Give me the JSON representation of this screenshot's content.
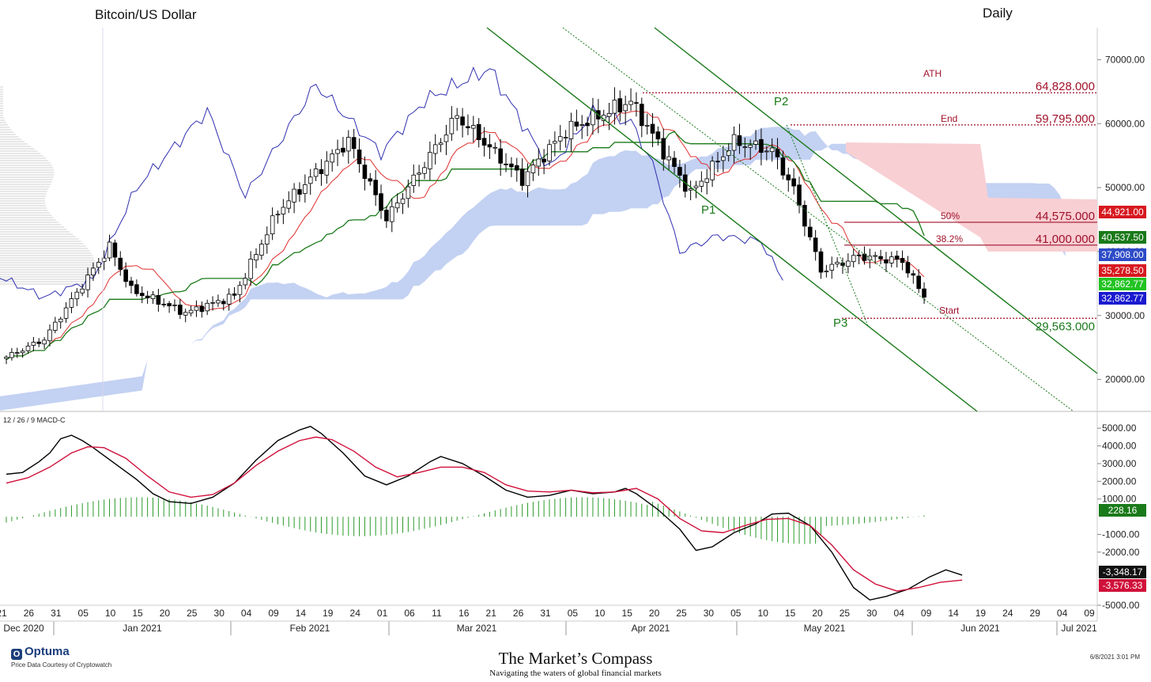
{
  "chart_title": "Bitcoin/US Dollar",
  "timeframe": "Daily",
  "indicator_label": "12 / 26 / 9 MACD-C",
  "footer": {
    "brand": "Optuma",
    "brand_sub": "Price Data Courtesy of Cryptowatch",
    "publication": "The Market’s Compass",
    "publication_sub": "Navigating the waters of global financial markets",
    "timestamp": "6/8/2021 3:01 PM"
  },
  "colors": {
    "candle_up": "#ffffff",
    "candle_down": "#000000",
    "conversion_line": "#e03030",
    "base_line": "#1a7a1a",
    "lagging_line": "#3030b0",
    "cloud_bull": "#b9c9f0",
    "cloud_bear": "#f8cfd3",
    "pitchfork": "#1a7a1a",
    "level_line": "#a0102a",
    "macd_line": "#000000",
    "signal_line": "#d0103a",
    "histogram": "#2a9a2a"
  },
  "chart_data": [
    {
      "type": "candlestick",
      "title": "Bitcoin/US Dollar",
      "ylim": [
        15000,
        75000
      ],
      "y_ticks": [
        "70000.00",
        "60000.00",
        "50000.00",
        "40000.00",
        "30000.00",
        "20000.00"
      ],
      "x_date_labels": [
        "21",
        "26",
        "31",
        "05",
        "10",
        "15",
        "20",
        "25",
        "30",
        "04",
        "09",
        "14",
        "19",
        "24",
        "01",
        "06",
        "11",
        "16",
        "21",
        "26",
        "31",
        "05",
        "10",
        "15",
        "20",
        "25",
        "30",
        "05",
        "10",
        "15",
        "20",
        "25",
        "30",
        "04",
        "09",
        "14",
        "19",
        "24",
        "29",
        "04",
        "09"
      ],
      "x_month_labels": [
        "Dec 2020",
        "Jan 2021",
        "Feb 2021",
        "Mar 2021",
        "Apr 2021",
        "May 2021",
        "Jun 2021",
        "Jul 2021"
      ],
      "key_prices": [
        {
          "date": "2020-12-20",
          "close": 23500
        },
        {
          "date": "2020-12-27",
          "close": 26300
        },
        {
          "date": "2021-01-08",
          "close": 40800
        },
        {
          "date": "2021-01-12",
          "close": 34000
        },
        {
          "date": "2021-01-22",
          "close": 30400
        },
        {
          "date": "2021-01-31",
          "close": 33100
        },
        {
          "date": "2021-02-08",
          "close": 46300
        },
        {
          "date": "2021-02-21",
          "close": 57400
        },
        {
          "date": "2021-02-28",
          "close": 45100
        },
        {
          "date": "2021-03-13",
          "close": 61200
        },
        {
          "date": "2021-03-25",
          "close": 51300
        },
        {
          "date": "2021-04-02",
          "close": 58900
        },
        {
          "date": "2021-04-14",
          "close": 63500
        },
        {
          "date": "2021-04-25",
          "close": 49100
        },
        {
          "date": "2021-05-03",
          "close": 57200
        },
        {
          "date": "2021-05-10",
          "close": 55800
        },
        {
          "date": "2021-05-14",
          "close": 49700
        },
        {
          "date": "2021-05-19",
          "close": 37000
        },
        {
          "date": "2021-05-26",
          "close": 39300
        },
        {
          "date": "2021-06-03",
          "close": 38500
        },
        {
          "date": "2021-06-07",
          "close": 32862.77
        }
      ],
      "levels": [
        {
          "label": "ATH",
          "value": "64,828.000",
          "price": 64828
        },
        {
          "label": "End",
          "value": "59,795.000",
          "price": 59795
        },
        {
          "label": "50%",
          "value": "44,575.000",
          "price": 44575
        },
        {
          "label": "38.2%",
          "value": "41,000.000",
          "price": 41000
        },
        {
          "label": "Start",
          "value": "29,563.000",
          "price": 29563
        }
      ],
      "pivots": [
        "P1",
        "P2",
        "P3"
      ],
      "price_tags": [
        {
          "value": "44,921.00",
          "color": "#d71920"
        },
        {
          "value": "40,537.50",
          "color": "#1a7a1a"
        },
        {
          "value": "37,908.00",
          "color": "#2d4bc7"
        },
        {
          "value": "35,278.50",
          "color": "#d71920"
        },
        {
          "value": "32,862.77",
          "color": "#22c322"
        },
        {
          "value": "32,862.77",
          "color": "#1a1ad0"
        }
      ]
    },
    {
      "type": "line",
      "title": "12 / 26 / 9 MACD-C",
      "ylim": [
        -5000,
        5500
      ],
      "y_ticks": [
        "5000.00",
        "4000.00",
        "3000.00",
        "2000.00",
        "1000.00",
        "-1000.00",
        "-2000.00",
        "-5000.00"
      ],
      "series": [
        {
          "name": "MACD",
          "points": [
            [
              0,
              2400
            ],
            [
              3,
              2500
            ],
            [
              6,
              3100
            ],
            [
              8,
              3600
            ],
            [
              10,
              4400
            ],
            [
              12,
              4600
            ],
            [
              14,
              4300
            ],
            [
              16,
              3900
            ],
            [
              20,
              3000
            ],
            [
              24,
              2100
            ],
            [
              27,
              1300
            ],
            [
              30,
              850
            ],
            [
              34,
              750
            ],
            [
              38,
              1100
            ],
            [
              42,
              1900
            ],
            [
              46,
              3200
            ],
            [
              50,
              4300
            ],
            [
              54,
              4900
            ],
            [
              56,
              5100
            ],
            [
              58,
              4700
            ],
            [
              62,
              3600
            ],
            [
              66,
              2300
            ],
            [
              70,
              1800
            ],
            [
              74,
              2300
            ],
            [
              78,
              3100
            ],
            [
              80,
              3400
            ],
            [
              84,
              3000
            ],
            [
              88,
              2300
            ],
            [
              92,
              1500
            ],
            [
              96,
              1100
            ],
            [
              100,
              1200
            ],
            [
              104,
              1500
            ],
            [
              108,
              1300
            ],
            [
              112,
              1400
            ],
            [
              114,
              1600
            ],
            [
              116,
              1300
            ],
            [
              120,
              400
            ],
            [
              124,
              -700
            ],
            [
              127,
              -1900
            ],
            [
              130,
              -1700
            ],
            [
              134,
              -900
            ],
            [
              138,
              -400
            ],
            [
              141,
              150
            ],
            [
              144,
              200
            ],
            [
              148,
              -500
            ],
            [
              152,
              -2000
            ],
            [
              156,
              -4000
            ],
            [
              159,
              -4700
            ],
            [
              162,
              -4500
            ],
            [
              166,
              -4100
            ],
            [
              170,
              -3400
            ],
            [
              173,
              -3000
            ],
            [
              176,
              -3300
            ]
          ]
        },
        {
          "name": "Signal",
          "points": [
            [
              0,
              1900
            ],
            [
              4,
              2200
            ],
            [
              8,
              2800
            ],
            [
              12,
              3600
            ],
            [
              15,
              3950
            ],
            [
              18,
              3900
            ],
            [
              22,
              3300
            ],
            [
              26,
              2300
            ],
            [
              30,
              1400
            ],
            [
              34,
              1100
            ],
            [
              38,
              1250
            ],
            [
              42,
              1900
            ],
            [
              46,
              2900
            ],
            [
              50,
              3700
            ],
            [
              54,
              4300
            ],
            [
              57,
              4500
            ],
            [
              60,
              4350
            ],
            [
              64,
              3700
            ],
            [
              68,
              2800
            ],
            [
              72,
              2250
            ],
            [
              76,
              2500
            ],
            [
              80,
              2800
            ],
            [
              84,
              2800
            ],
            [
              88,
              2500
            ],
            [
              92,
              1800
            ],
            [
              96,
              1450
            ],
            [
              100,
              1400
            ],
            [
              104,
              1500
            ],
            [
              108,
              1350
            ],
            [
              112,
              1400
            ],
            [
              116,
              1600
            ],
            [
              120,
              1000
            ],
            [
              124,
              -100
            ],
            [
              128,
              -800
            ],
            [
              132,
              -900
            ],
            [
              136,
              -500
            ],
            [
              140,
              -150
            ],
            [
              144,
              -100
            ],
            [
              148,
              -500
            ],
            [
              152,
              -1600
            ],
            [
              156,
              -3000
            ],
            [
              160,
              -3800
            ],
            [
              164,
              -4200
            ],
            [
              168,
              -4000
            ],
            [
              172,
              -3700
            ],
            [
              176,
              -3580
            ]
          ]
        }
      ],
      "histogram_range": [
        -1500,
        1250
      ],
      "price_tags": [
        {
          "value": "228.16",
          "color": "#1a7a1a"
        },
        {
          "value": "-3,348.17",
          "color": "#111111"
        },
        {
          "value": "-3,576.33",
          "color": "#d0103a"
        }
      ]
    }
  ]
}
